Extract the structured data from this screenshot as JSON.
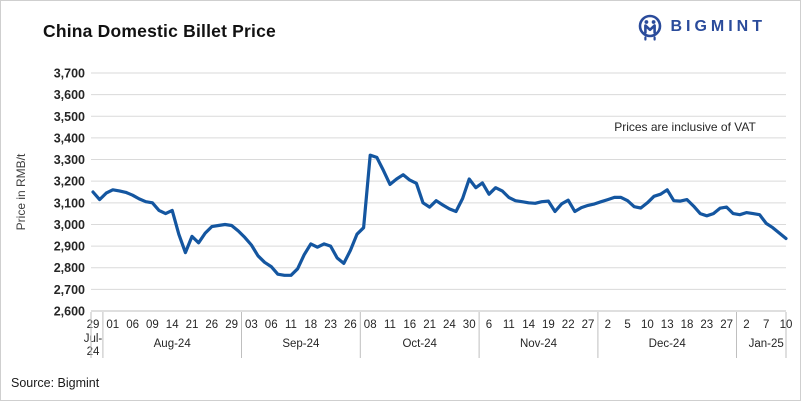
{
  "header": {
    "title": "China Domestic Billet Price",
    "brand": "BIGMINT"
  },
  "annotation": "Prices are inclusive of VAT",
  "source": "Source: Bigmint",
  "colors": {
    "line": "#1456a0",
    "brand": "#2a4b9b",
    "grid": "#dadada",
    "axis": "#bfbfbf",
    "text": "#262626"
  },
  "chart_data": {
    "type": "line",
    "title": "China Domestic Billet Price",
    "ylabel": "Price in RMB/t",
    "ylim": [
      2600,
      3700
    ],
    "ytick_step": 100,
    "grid": true,
    "legend_position": "none",
    "label_every": 3,
    "months": [
      {
        "label": "Jul-24",
        "days": [
          "29"
        ]
      },
      {
        "label": "Aug-24",
        "days": [
          "01",
          "06",
          "09",
          "14",
          "21",
          "26",
          "29"
        ]
      },
      {
        "label": "Sep-24",
        "days": [
          "03",
          "06",
          "11",
          "18",
          "23",
          "26"
        ]
      },
      {
        "label": "Oct-24",
        "days": [
          "08",
          "11",
          "16",
          "21",
          "24",
          "30"
        ]
      },
      {
        "label": "Nov-24",
        "days": [
          "6",
          "11",
          "14",
          "19",
          "22",
          "27"
        ]
      },
      {
        "label": "Dec-24",
        "days": [
          "2",
          "5",
          "10",
          "13",
          "18",
          "23",
          "27"
        ]
      },
      {
        "label": "Jan-25",
        "days": [
          "2",
          "7",
          "10"
        ]
      }
    ],
    "values": [
      3150,
      3115,
      3145,
      3160,
      3155,
      3148,
      3135,
      3118,
      3105,
      3100,
      3065,
      3050,
      3065,
      2955,
      2870,
      2945,
      2915,
      2960,
      2990,
      2995,
      3000,
      2995,
      2970,
      2940,
      2905,
      2855,
      2825,
      2805,
      2770,
      2765,
      2765,
      2795,
      2860,
      2910,
      2895,
      2910,
      2900,
      2845,
      2820,
      2880,
      2955,
      2985,
      3320,
      3310,
      3250,
      3185,
      3210,
      3230,
      3205,
      3190,
      3100,
      3080,
      3110,
      3090,
      3072,
      3060,
      3120,
      3210,
      3170,
      3192,
      3140,
      3170,
      3155,
      3125,
      3110,
      3105,
      3100,
      3098,
      3105,
      3108,
      3060,
      3095,
      3112,
      3060,
      3078,
      3088,
      3095,
      3105,
      3115,
      3125,
      3125,
      3110,
      3082,
      3076,
      3100,
      3130,
      3140,
      3160,
      3110,
      3108,
      3115,
      3085,
      3050,
      3040,
      3050,
      3075,
      3080,
      3050,
      3045,
      3055,
      3050,
      3045,
      3005,
      2985,
      2960,
      2935
    ]
  }
}
